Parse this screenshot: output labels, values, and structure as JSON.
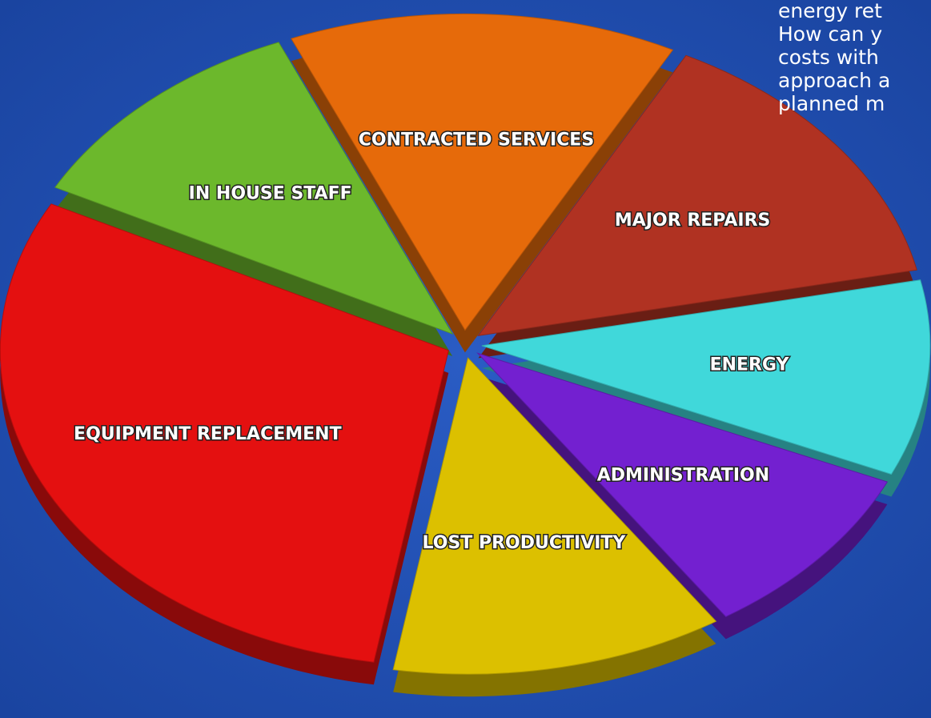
{
  "chart_data": {
    "type": "pie",
    "categories": [
      "ENERGY",
      "ADMINISTRATION",
      "LOST PRODUCTIVITY",
      "EQUIPMENT REPLACEMENT",
      "IN HOUSE STAFF",
      "CONTRACTED SERVICES",
      "MAJOR REPAIRS"
    ],
    "values": [
      10,
      9,
      12,
      30,
      11,
      14,
      14
    ],
    "colors": [
      "#40d8da",
      "#7320d0",
      "#dcc000",
      "#e41010",
      "#6cb82c",
      "#e66a0a",
      "#b03222"
    ]
  },
  "text_lines": [
    "energy ret",
    "How can y",
    "costs with",
    "approach a",
    "planned m"
  ]
}
